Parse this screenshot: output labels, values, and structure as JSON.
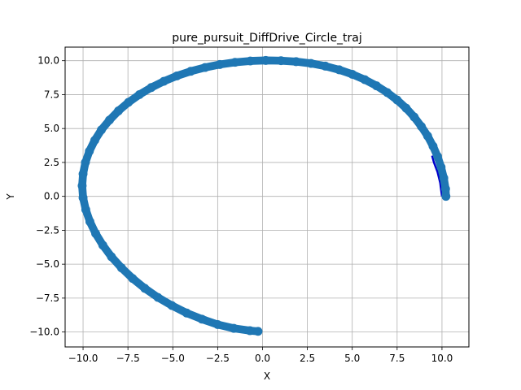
{
  "chart_data": {
    "type": "scatter",
    "title": "pure_pursuit_DiffDrive_Circle_traj",
    "xlabel": "X",
    "ylabel": "Y",
    "xlim": [
      -11.0,
      11.5
    ],
    "ylim": [
      -11.1,
      11.0
    ],
    "x_ticks": [
      -10.0,
      -7.5,
      -5.0,
      -2.5,
      0.0,
      2.5,
      5.0,
      7.5,
      10.0
    ],
    "y_ticks": [
      -10.0,
      -7.5,
      -5.0,
      -2.5,
      0.0,
      2.5,
      5.0,
      7.5,
      10.0
    ],
    "x_tick_labels": [
      "−10.0",
      "−7.5",
      "−5.0",
      "−2.5",
      "0.0",
      "2.5",
      "5.0",
      "7.5",
      "10.0"
    ],
    "y_tick_labels": [
      "−10.0",
      "−7.5",
      "−5.0",
      "−2.5",
      "0.0",
      "2.5",
      "5.0",
      "7.5",
      "10.0"
    ],
    "grid": true,
    "reference_path": {
      "color": "#0000cc",
      "radius": 10.0,
      "x": [
        10.0,
        9.9,
        9.75,
        9.55,
        9.45
      ],
      "y": [
        0.0,
        1.0,
        1.8,
        2.5,
        3.0
      ]
    },
    "series": [
      {
        "color": "#1f77b4",
        "marker_radius": 0.22,
        "x": [
          10.22,
          10.2,
          10.1,
          9.95,
          9.75,
          9.5,
          9.2,
          8.85,
          8.45,
          8.0,
          7.5,
          6.95,
          6.35,
          5.7,
          5.0,
          4.27,
          3.5,
          2.7,
          1.87,
          1.03,
          0.18,
          -0.68,
          -1.53,
          -2.38,
          -3.2,
          -4.0,
          -4.77,
          -5.5,
          -6.2,
          -6.86,
          -7.47,
          -8.03,
          -8.53,
          -8.98,
          -9.35,
          -9.65,
          -9.87,
          -10.0,
          -10.05,
          -10.0,
          -9.85,
          -9.62,
          -9.3,
          -8.9,
          -8.42,
          -7.86,
          -7.24,
          -6.56,
          -5.83,
          -5.05,
          -4.23,
          -3.38,
          -2.5,
          -1.6,
          -0.7,
          -0.25
        ],
        "y": [
          0.0,
          0.55,
          1.35,
          2.15,
          2.95,
          3.7,
          4.45,
          5.15,
          5.85,
          6.5,
          7.1,
          7.65,
          8.15,
          8.6,
          9.0,
          9.33,
          9.6,
          9.8,
          9.93,
          10.0,
          10.02,
          9.98,
          9.88,
          9.72,
          9.5,
          9.22,
          8.88,
          8.48,
          8.02,
          7.5,
          6.93,
          6.3,
          5.62,
          4.9,
          4.13,
          3.33,
          2.5,
          1.65,
          0.78,
          -0.1,
          -0.98,
          -1.86,
          -2.74,
          -3.6,
          -4.45,
          -5.27,
          -6.05,
          -6.78,
          -7.45,
          -8.05,
          -8.6,
          -9.05,
          -9.45,
          -9.73,
          -9.9,
          -9.95
        ]
      }
    ]
  }
}
